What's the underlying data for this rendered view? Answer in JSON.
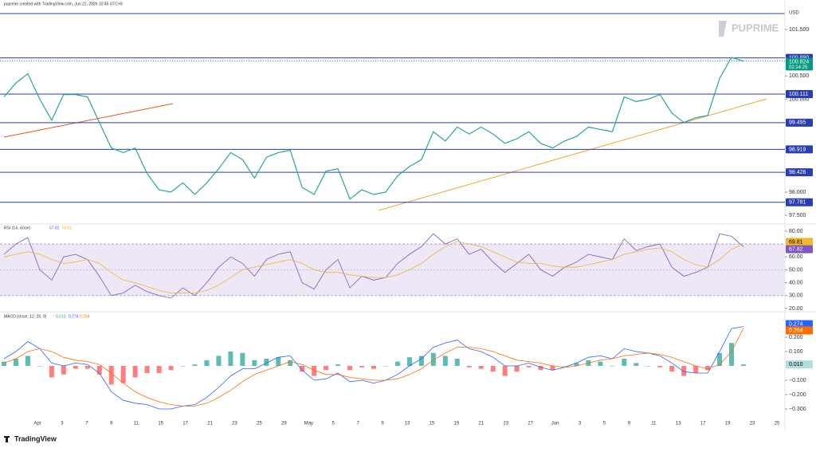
{
  "header": "puprime created with TradingView.com, Jun 22, 2026 10:45 UTC+8",
  "logo": "PUPRIME",
  "footer": "TradingView",
  "chart_data": [
    {
      "type": "line",
      "unit": "USD",
      "color": "#26a69a",
      "values": [
        100.05,
        100.35,
        100.55,
        100.0,
        99.55,
        100.1,
        100.1,
        100.05,
        99.5,
        98.95,
        98.85,
        98.95,
        98.4,
        98.05,
        98.0,
        98.2,
        97.95,
        98.2,
        98.5,
        98.85,
        98.7,
        98.3,
        98.75,
        98.85,
        98.9,
        98.1,
        97.95,
        98.45,
        98.5,
        97.85,
        98.05,
        97.95,
        98.0,
        98.35,
        98.55,
        98.7,
        99.3,
        99.1,
        99.4,
        99.25,
        99.4,
        99.25,
        99.05,
        99.15,
        99.3,
        99.05,
        98.95,
        99.1,
        99.2,
        99.4,
        99.35,
        99.3,
        100.05,
        99.95,
        100.0,
        100.1,
        99.7,
        99.5,
        99.6,
        99.65,
        100.45,
        100.9,
        100.82
      ],
      "ylim": [
        97.33,
        101.93
      ],
      "yticks": [
        {
          "value": 101.5,
          "label": "101.500"
        },
        {
          "value": 100.5,
          "label": "100.500"
        },
        {
          "value": 100.0,
          "label": "100.000"
        },
        {
          "value": 98.0,
          "label": "98.000"
        },
        {
          "value": 97.5,
          "label": "97.500"
        }
      ],
      "levels": [
        {
          "value": 100.89,
          "label": "100.890"
        },
        {
          "value": 100.111,
          "label": "100.111"
        },
        {
          "value": 99.495,
          "label": "99.495"
        },
        {
          "value": 98.919,
          "label": "98.919"
        },
        {
          "value": 98.426,
          "label": "98.426"
        },
        {
          "value": 97.781,
          "label": "97.781"
        }
      ],
      "level_color": "#2a3db5",
      "last_price": {
        "value": 100.824,
        "label": "100.824"
      },
      "countdown": "02:14:25",
      "last_color": "#089981"
    },
    {
      "type": "line",
      "title": "RSI (14, close)",
      "series": [
        {
          "color": "#7e57c2",
          "values": [
            62,
            70,
            75,
            50,
            42,
            60,
            62,
            58,
            45,
            30,
            32,
            38,
            33,
            30,
            28,
            36,
            30,
            40,
            52,
            60,
            55,
            45,
            58,
            62,
            64,
            40,
            35,
            50,
            58,
            36,
            45,
            42,
            44,
            55,
            62,
            68,
            78,
            70,
            74,
            62,
            66,
            56,
            48,
            55,
            62,
            50,
            45,
            52,
            56,
            62,
            60,
            58,
            74,
            65,
            68,
            70,
            52,
            45,
            48,
            52,
            78,
            76,
            67.82
          ],
          "last": {
            "value": 67.82,
            "label": "67.82"
          }
        },
        {
          "color": "#f2b630",
          "values": [
            60,
            62,
            64,
            62,
            58,
            55,
            56,
            58,
            55,
            48,
            42,
            40,
            37,
            34,
            32,
            32,
            32,
            34,
            38,
            44,
            50,
            52,
            54,
            56,
            58,
            55,
            50,
            48,
            48,
            46,
            45,
            44,
            44,
            46,
            50,
            55,
            62,
            68,
            72,
            70,
            68,
            64,
            60,
            56,
            55,
            55,
            53,
            52,
            52,
            54,
            56,
            58,
            62,
            64,
            66,
            67,
            64,
            58,
            54,
            52,
            58,
            66,
            69.81
          ],
          "last": {
            "value": 69.81,
            "label": "69.81"
          }
        }
      ],
      "band": [
        30,
        70
      ],
      "band_color": "#ede7f6",
      "ylim": [
        18.1,
        84.3
      ],
      "yticks": [
        {
          "value": 80,
          "label": "80.00"
        },
        {
          "value": 60,
          "label": "60.00"
        },
        {
          "value": 50,
          "label": "50.00"
        },
        {
          "value": 40,
          "label": "40.00"
        },
        {
          "value": 30,
          "label": "30.00"
        },
        {
          "value": 20,
          "label": "20.00"
        }
      ]
    },
    {
      "type": "macd",
      "title": "MACD (close, 12, 26, 9)",
      "histogram": {
        "values": [
          0.03,
          0.05,
          0.07,
          0.0,
          -0.08,
          -0.06,
          -0.02,
          -0.02,
          -0.06,
          -0.13,
          -0.12,
          -0.08,
          -0.05,
          -0.05,
          -0.03,
          0.0,
          0.01,
          0.04,
          0.07,
          0.1,
          0.09,
          0.04,
          0.05,
          0.06,
          0.04,
          -0.04,
          -0.07,
          -0.03,
          0.01,
          -0.03,
          -0.01,
          -0.02,
          0.0,
          0.03,
          0.06,
          0.07,
          0.09,
          0.07,
          0.05,
          -0.01,
          -0.02,
          -0.04,
          -0.07,
          -0.04,
          -0.01,
          -0.03,
          -0.03,
          0.0,
          0.02,
          0.04,
          0.03,
          0.0,
          0.05,
          0.02,
          0.0,
          -0.01,
          -0.04,
          -0.07,
          -0.05,
          -0.03,
          0.09,
          0.16,
          0.01
        ],
        "last": {
          "value": 0.01,
          "label": "0.010"
        },
        "up_color": "#26a69a",
        "down_color": "#ff5252",
        "badge_color": "#b2dfdb"
      },
      "series": [
        {
          "color": "#2962ff",
          "values": [
            0.05,
            0.1,
            0.17,
            0.12,
            0.02,
            0.0,
            0.02,
            0.01,
            -0.05,
            -0.18,
            -0.24,
            -0.26,
            -0.27,
            -0.3,
            -0.3,
            -0.28,
            -0.27,
            -0.22,
            -0.15,
            -0.07,
            -0.02,
            -0.02,
            0.02,
            0.06,
            0.07,
            -0.03,
            -0.1,
            -0.09,
            -0.05,
            -0.11,
            -0.1,
            -0.12,
            -0.1,
            -0.06,
            0.0,
            0.05,
            0.13,
            0.16,
            0.18,
            0.12,
            0.1,
            0.06,
            0.0,
            0.0,
            0.02,
            -0.01,
            -0.03,
            -0.01,
            0.02,
            0.06,
            0.07,
            0.05,
            0.12,
            0.1,
            0.09,
            0.07,
            0.02,
            -0.04,
            -0.05,
            -0.05,
            0.1,
            0.26,
            0.274
          ],
          "last": {
            "value": 0.274,
            "label": "0.274"
          }
        },
        {
          "color": "#ff6d00",
          "values": [
            0.02,
            0.05,
            0.1,
            0.12,
            0.1,
            0.06,
            0.04,
            0.03,
            0.01,
            -0.05,
            -0.12,
            -0.18,
            -0.22,
            -0.25,
            -0.27,
            -0.28,
            -0.28,
            -0.26,
            -0.22,
            -0.17,
            -0.11,
            -0.06,
            -0.03,
            0.0,
            0.03,
            0.01,
            -0.03,
            -0.06,
            -0.06,
            -0.08,
            -0.09,
            -0.1,
            -0.1,
            -0.09,
            -0.06,
            -0.02,
            0.04,
            0.09,
            0.13,
            0.13,
            0.12,
            0.1,
            0.07,
            0.04,
            0.03,
            0.02,
            0.0,
            -0.01,
            0.0,
            0.02,
            0.04,
            0.05,
            0.07,
            0.08,
            0.09,
            0.08,
            0.06,
            0.03,
            0.0,
            -0.02,
            0.01,
            0.1,
            0.264
          ],
          "last": {
            "value": 0.264,
            "label": "0.264"
          }
        }
      ],
      "ylim": [
        -0.35,
        0.372
      ],
      "yticks": [
        {
          "value": 0.2,
          "label": "0.200"
        },
        {
          "value": 0.1,
          "label": "0.100"
        },
        {
          "value": -0.1,
          "label": "−0.100"
        },
        {
          "value": -0.2,
          "label": "−0.200"
        },
        {
          "value": -0.3,
          "label": "−0.300"
        }
      ]
    }
  ],
  "x_labels": [
    "Apr",
    "3",
    "7",
    "9",
    "11",
    "15",
    "17",
    "21",
    "23",
    "25",
    "29",
    "May",
    "5",
    "7",
    "9",
    "13",
    "15",
    "19",
    "21",
    "23",
    "27",
    "Jun",
    "3",
    "5",
    "9",
    "11",
    "13",
    "17",
    "19",
    "23",
    "25"
  ]
}
